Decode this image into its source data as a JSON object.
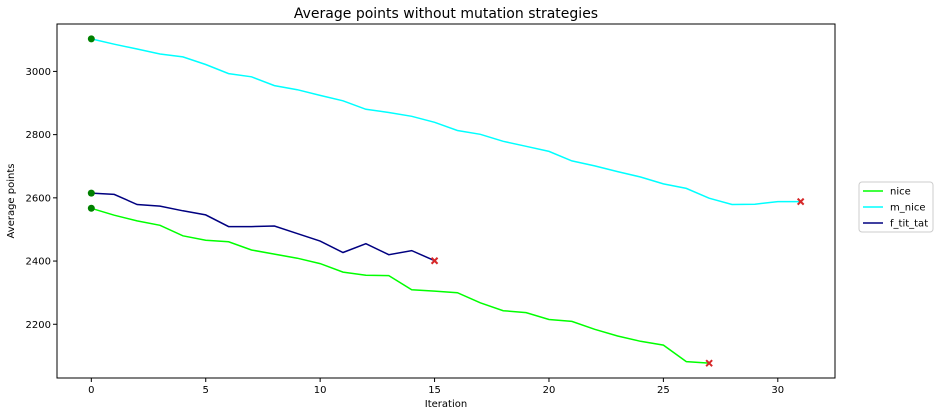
{
  "chart_data": {
    "type": "line",
    "title": "Average points without mutation strategies",
    "xlabel": "Iteration",
    "ylabel": "Average points",
    "xlim": [
      -1.5,
      32.5
    ],
    "ylim": [
      2030,
      3150
    ],
    "xticks": [
      0,
      5,
      10,
      15,
      20,
      25,
      30
    ],
    "yticks": [
      2200,
      2400,
      2600,
      2800,
      3000
    ],
    "grid": false,
    "legend_position": "right",
    "start_marker_color": "#008000",
    "end_marker_color": "#d62728",
    "series": [
      {
        "name": "nice",
        "color": "#00ff00",
        "x": [
          0,
          1,
          2,
          3,
          4,
          5,
          6,
          7,
          8,
          9,
          10,
          11,
          12,
          13,
          14,
          15,
          16,
          17,
          18,
          19,
          20,
          21,
          22,
          23,
          24,
          25,
          26,
          27
        ],
        "y": [
          2567,
          2545,
          2527,
          2513,
          2480,
          2466,
          2461,
          2435,
          2422,
          2409,
          2392,
          2365,
          2355,
          2354,
          2309,
          2305,
          2300,
          2268,
          2243,
          2237,
          2215,
          2209,
          2184,
          2163,
          2146,
          2134,
          2082,
          2077
        ]
      },
      {
        "name": "m_nice",
        "color": "#00ffff",
        "x": [
          0,
          1,
          2,
          3,
          4,
          5,
          6,
          7,
          8,
          9,
          10,
          11,
          12,
          13,
          14,
          15,
          16,
          17,
          18,
          19,
          20,
          21,
          22,
          23,
          24,
          25,
          26,
          27,
          28,
          29,
          30,
          31
        ],
        "y": [
          3103,
          3086,
          3071,
          3055,
          3046,
          3022,
          2993,
          2983,
          2955,
          2942,
          2924,
          2907,
          2880,
          2870,
          2858,
          2839,
          2813,
          2801,
          2779,
          2763,
          2747,
          2717,
          2701,
          2683,
          2666,
          2644,
          2630,
          2599,
          2579,
          2580,
          2588,
          2588
        ]
      },
      {
        "name": "f_tit_tat",
        "color": "#000080",
        "x": [
          0,
          1,
          2,
          3,
          4,
          5,
          6,
          7,
          8,
          9,
          10,
          11,
          12,
          13,
          14,
          15
        ],
        "y": [
          2615,
          2611,
          2579,
          2574,
          2559,
          2546,
          2509,
          2509,
          2511,
          2487,
          2463,
          2427,
          2455,
          2420,
          2433,
          2401
        ]
      }
    ]
  }
}
